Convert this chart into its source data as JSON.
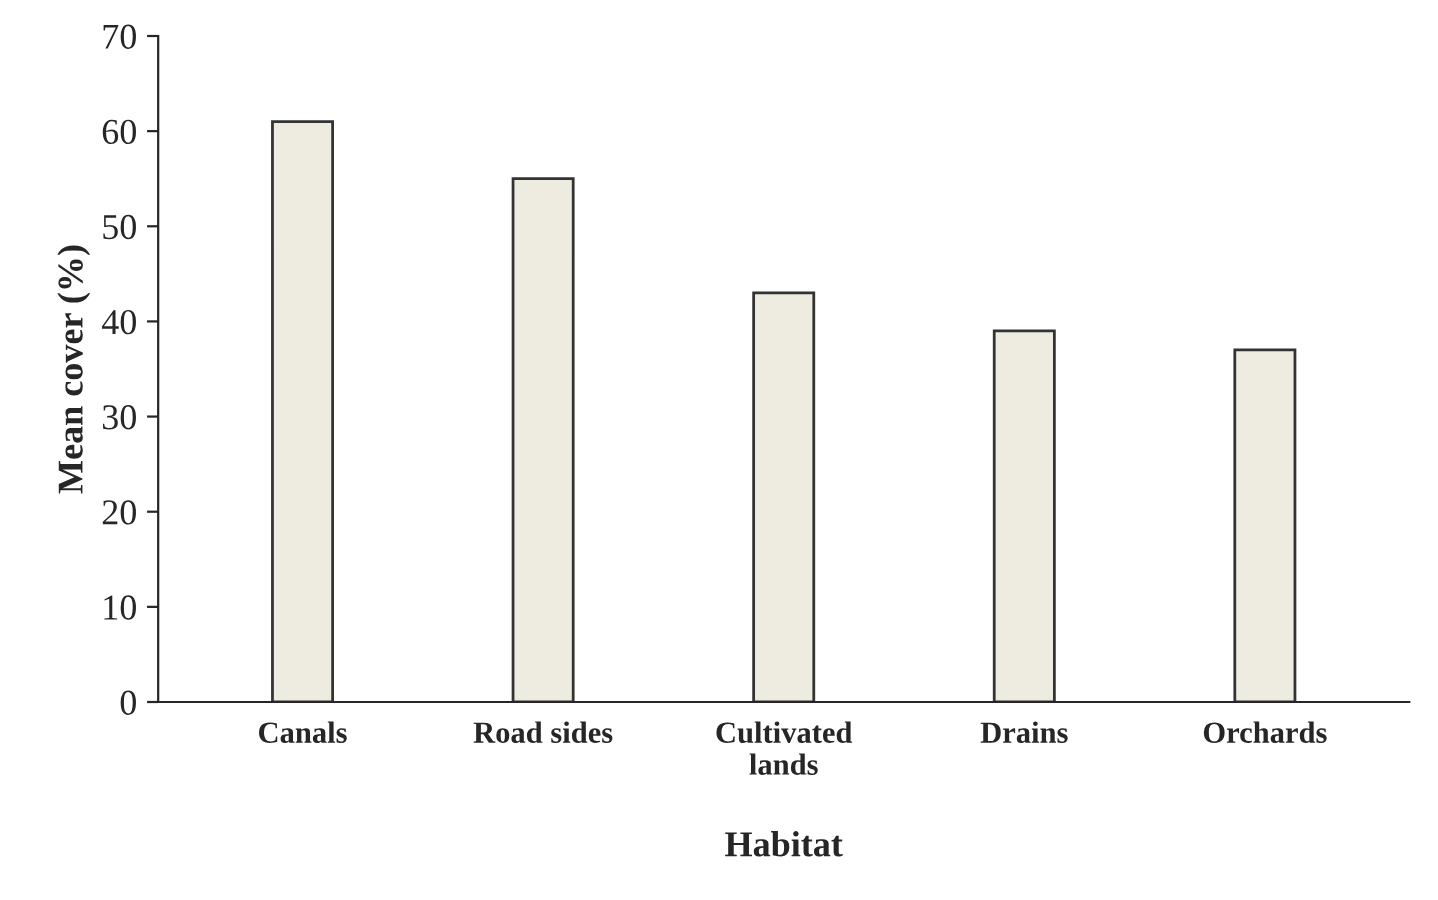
{
  "chart_data": {
    "type": "bar",
    "xlabel": "Habitat",
    "ylabel": "Mean cover (%)",
    "categories": [
      "Canals",
      "Road sides",
      "Cultivated\nlands",
      "Drains",
      "Orchards"
    ],
    "values": [
      61,
      55,
      43,
      39,
      37
    ],
    "color": "#eeece1",
    "ylim": [
      0,
      70
    ],
    "yticks": [
      0,
      10,
      20,
      30,
      40,
      50,
      60,
      70
    ],
    "grid": false
  }
}
